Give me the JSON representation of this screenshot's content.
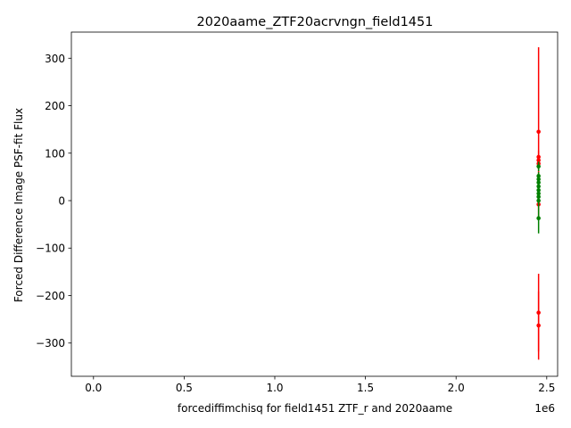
{
  "chart_data": {
    "type": "scatter",
    "title": "2020aame_ZTF20acrvngn_field1451",
    "xlabel": "forcediffimchisq for field1451 ZTF_r and 2020aame",
    "ylabel": "Forced Difference Image PSF-fit Flux",
    "x_offset_label": "1e6",
    "xlim": [
      -122000,
      2560000
    ],
    "ylim": [
      -370,
      355
    ],
    "x_ticks": [
      0,
      500000,
      1000000,
      1500000,
      2000000,
      2500000
    ],
    "x_tick_labels": [
      "0.0",
      "0.5",
      "1.0",
      "1.5",
      "2.0",
      "2.5"
    ],
    "y_ticks": [
      -300,
      -200,
      -100,
      0,
      100,
      200,
      300
    ],
    "y_tick_labels": [
      "−300",
      "−200",
      "−100",
      "0",
      "100",
      "200",
      "300"
    ],
    "grid": false,
    "series": [
      {
        "color": "#ff0000",
        "points": [
          {
            "x": 2455000,
            "y": 145,
            "err": 178
          },
          {
            "x": 2455000,
            "y": 92,
            "err": 14
          },
          {
            "x": 2455000,
            "y": 85,
            "err": 12
          },
          {
            "x": 2455000,
            "y": 78,
            "err": 10
          },
          {
            "x": 2455000,
            "y": -8,
            "err": 6
          },
          {
            "x": 2455000,
            "y": -236,
            "err": 82
          },
          {
            "x": 2455000,
            "y": -263,
            "err": 72
          }
        ]
      },
      {
        "color": "#008000",
        "points": [
          {
            "x": 2455000,
            "y": 72,
            "err": 10
          },
          {
            "x": 2455000,
            "y": 52,
            "err": 8
          },
          {
            "x": 2455000,
            "y": 45,
            "err": 8
          },
          {
            "x": 2455000,
            "y": 38,
            "err": 8
          },
          {
            "x": 2455000,
            "y": 30,
            "err": 8
          },
          {
            "x": 2455000,
            "y": 22,
            "err": 8
          },
          {
            "x": 2455000,
            "y": 15,
            "err": 8
          },
          {
            "x": 2455000,
            "y": 8,
            "err": 8
          },
          {
            "x": 2455000,
            "y": 0,
            "err": 8
          },
          {
            "x": 2455000,
            "y": -37,
            "err": 32
          }
        ]
      }
    ]
  }
}
